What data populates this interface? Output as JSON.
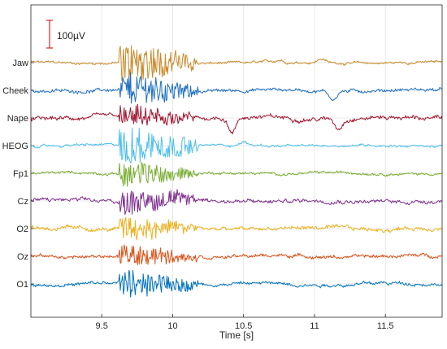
{
  "chart_data": {
    "type": "line",
    "title": "",
    "xlabel": "Time [s]",
    "ylabel": "",
    "xlim": [
      9.0,
      11.9
    ],
    "xticks": [
      9.5,
      10,
      10.5,
      11,
      11.5
    ],
    "xtick_labels": [
      "9.5",
      "10",
      "10.5",
      "11",
      "11.5"
    ],
    "grid": true,
    "legend": "none",
    "scale_bar": {
      "label": "100µV",
      "value_uV": 100,
      "color": "#d62728"
    },
    "artifact_window": [
      9.62,
      10.18
    ],
    "series": [
      {
        "name": "Jaw",
        "color": "#c98a2a",
        "offset_uV": 0,
        "noise_uV": 6,
        "artifact_uV": 75,
        "features": [
          {
            "t": 10.75,
            "uV": 8
          },
          {
            "t": 11.05,
            "uV": 14
          }
        ]
      },
      {
        "name": "Cheek",
        "color": "#1f6fc0",
        "offset_uV": -100,
        "noise_uV": 8,
        "artifact_uV": 60,
        "features": [
          {
            "t": 11.13,
            "uV": -30
          }
        ]
      },
      {
        "name": "Nape",
        "color": "#a2142f",
        "offset_uV": -200,
        "noise_uV": 10,
        "artifact_uV": 35,
        "features": [
          {
            "t": 10.42,
            "uV": -55
          },
          {
            "t": 11.17,
            "uV": -35
          }
        ]
      },
      {
        "name": "HEOG",
        "color": "#4dbeee",
        "offset_uV": -300,
        "noise_uV": 6,
        "artifact_uV": 70,
        "features": [
          {
            "t": 10.5,
            "uV": 12
          }
        ]
      },
      {
        "name": "Fp1",
        "color": "#77ac30",
        "offset_uV": -400,
        "noise_uV": 6,
        "artifact_uV": 45,
        "features": []
      },
      {
        "name": "Cz",
        "color": "#7e2f8e",
        "offset_uV": -500,
        "noise_uV": 10,
        "artifact_uV": 45,
        "features": []
      },
      {
        "name": "O2",
        "color": "#edb120",
        "offset_uV": -600,
        "noise_uV": 10,
        "artifact_uV": 40,
        "features": []
      },
      {
        "name": "Oz",
        "color": "#d95319",
        "offset_uV": -700,
        "noise_uV": 8,
        "artifact_uV": 35,
        "features": []
      },
      {
        "name": "O1",
        "color": "#0072bd",
        "offset_uV": -800,
        "noise_uV": 8,
        "artifact_uV": 50,
        "features": []
      }
    ]
  }
}
